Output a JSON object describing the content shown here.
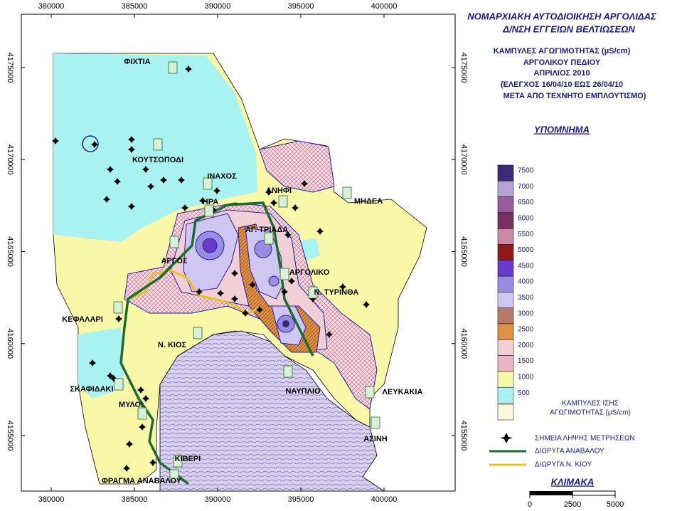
{
  "header": {
    "agency": [
      "ΝΟΜΑΡΧΙΑΚΗ ΑΥΤΟΔΙΟΙΚΗΣΗ ΑΡΓΟΛΙΔΑΣ",
      "Δ/ΝΣΗ ΕΓΓΕΙΩΝ ΒΕΛΤΙΩΣΕΩΝ"
    ],
    "title": [
      "ΚΑΜΠΥΛΕΣ ΑΓΩΓΙΜΟΤΗΤΑΣ (μS/cm)",
      "ΑΡΓΟΛΙΚΟΥ ΠΕΔΙΟΥ",
      "ΑΠΡΙΛΙΟΣ 2010",
      "(ΕΛΕΓΧΟΣ 16/04/10 ΕΩΣ 26/04/10",
      "ΜΕΤΑ ΑΠΟ ΤΕΧΝΗΤΟ ΕΜΠΛΟΥΤΙΣΜΟ)"
    ]
  },
  "legend": {
    "title": "ΥΠΟΜΝΗΜΑ",
    "classes": [
      {
        "value": 7500,
        "color": "#3b2a78"
      },
      {
        "value": 7000,
        "color": "#b3a3d6"
      },
      {
        "value": 6500,
        "color": "#9a5a9e"
      },
      {
        "value": 6000,
        "color": "#7a2f62"
      },
      {
        "value": 5500,
        "color": "#c98aa8"
      },
      {
        "value": 5000,
        "color": "#8e1b1b"
      },
      {
        "value": 4500,
        "color": "#6a3acc"
      },
      {
        "value": 4000,
        "color": "#9b8ce2"
      },
      {
        "value": 3500,
        "color": "#cfc6f2"
      },
      {
        "value": 3000,
        "color": "#b9796a"
      },
      {
        "value": 2500,
        "color": "#de9046"
      },
      {
        "value": 2000,
        "color": "#f2cfd6"
      },
      {
        "value": 1500,
        "color": "#e8b6c4"
      },
      {
        "value": 1000,
        "color": "#f8f8a8"
      },
      {
        "value": 500,
        "color": "#a8f2f2"
      }
    ],
    "caption": [
      "ΚΑΜΠΥΛΕΣ ΙΣΗΣ",
      "ΑΓΩΓΙΜΟΤΗΤΑΣ (μS/cm)"
    ],
    "symbols": [
      "ΣΗΜΕΙΑ ΛΗΨΗΣ ΜΕΤΡΗΣΕΩΝ",
      "ΔΙΩΡΥΓΑ ΑΝΑΒΑΛΟΥ",
      "ΔΙΩΡΥΓΑ Ν. ΚΙΟΥ"
    ]
  },
  "scale": {
    "title": "ΚΛΙΜΑΚΑ",
    "ticks": [
      0,
      2500,
      5000
    ]
  },
  "map": {
    "xlim": [
      378205,
      404274
    ],
    "ylim": [
      4151983,
      4177901
    ],
    "xticks": [
      380000,
      385000,
      390000,
      395000,
      400000
    ],
    "yticks": [
      4155000,
      4160000,
      4165000,
      4170000,
      4175000
    ],
    "places": [
      "ΦΙΧΤΙΑ",
      "ΚΟΥΤΣΟΠΟΔΙ",
      "ΙΝΑΧΟΣ",
      "ΑΝΗΦΙ",
      "ΜΗΔΕΑ",
      "ΗΡΑ",
      "ΑΓ. ΤΡΙΑΔΑ",
      "ΑΡΓΟΣ",
      "ΑΡΓΟΛΙΚΟ",
      "Ν. ΤΥΡΙΝΘΑ",
      "ΚΕΦΑΛΑΡΙ",
      "Ν. ΚΙΟΣ",
      "ΝΑΥΠΛΙΟ",
      "ΛΕΥΚΑΚΙΑ",
      "ΣΚΑΦΙΔΑΚΙ",
      "ΜΥΛΟΙ",
      "ΑΣΙΝΗ",
      "ΚΙΒΕΡΙ",
      "ΦΡΑΓΜΑ ΑΝΑΒΑΛΟΥ"
    ]
  }
}
